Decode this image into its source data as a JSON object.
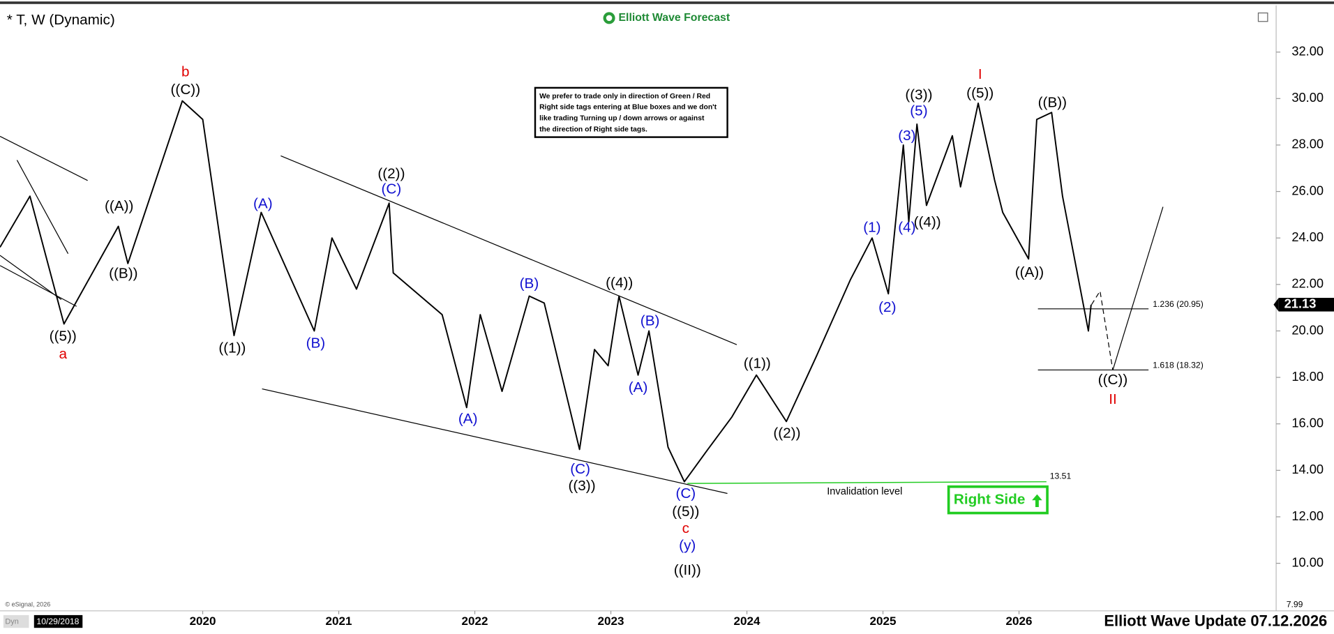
{
  "chart_data": {
    "type": "line",
    "title": "* T, W (Dynamic)",
    "brand": "Elliott Wave Forecast",
    "footer": "Elliott Wave Update 07.12.2026",
    "start_date": "10/29/2018",
    "mode_label": "Dyn",
    "source": "© eSignal, 2026",
    "right_side_tag": "Right Side",
    "disclaimer": [
      "We prefer to trade only in direction of Green / Red",
      "Right side tags entering at Blue boxes and we don't",
      "like trading Turning up / down arrows or against",
      "the direction of Right side tags."
    ],
    "x": [
      2018.51,
      2018.73,
      2018.98,
      2019.38,
      2019.45,
      2019.85,
      2020.0,
      2020.23,
      2020.43,
      2020.82,
      2020.95,
      2021.13,
      2021.37,
      2021.4,
      2021.76,
      2021.94,
      2022.04,
      2022.2,
      2022.4,
      2022.51,
      2022.77,
      2022.88,
      2022.98,
      2023.06,
      2023.2,
      2023.28,
      2023.42,
      2023.54,
      2023.7,
      2023.89,
      2024.07,
      2024.29,
      2024.51,
      2024.76,
      2024.92,
      2025.04,
      2025.15,
      2025.19,
      2025.25,
      2025.32,
      2025.51,
      2025.57,
      2025.7,
      2025.82,
      2025.88,
      2026.07,
      2026.13,
      2026.24,
      2026.32,
      2026.51,
      2026.53
    ],
    "values": [
      23.6,
      25.8,
      20.3,
      24.5,
      22.9,
      29.9,
      29.1,
      19.8,
      25.1,
      20.0,
      24.0,
      21.8,
      25.5,
      22.5,
      20.7,
      16.7,
      20.7,
      17.4,
      21.5,
      21.2,
      14.9,
      19.2,
      18.5,
      21.5,
      18.1,
      20.0,
      15.0,
      13.51,
      14.8,
      16.3,
      18.1,
      16.1,
      18.9,
      22.2,
      24.0,
      21.6,
      28.0,
      24.7,
      28.9,
      25.4,
      28.4,
      26.2,
      29.8,
      26.5,
      25.1,
      23.1,
      29.1,
      29.4,
      25.8,
      20.0,
      21.13
    ],
    "color": "#000000",
    "last_price": 21.13,
    "xlim": [
      2018.51,
      2027.89
    ],
    "xticks": [
      2020,
      2021,
      2022,
      2023,
      2024,
      2025,
      2026
    ],
    "ylim": [
      7.99,
      33.94
    ],
    "yticks": [
      {
        "value": 10,
        "label": "10.00"
      },
      {
        "value": 12,
        "label": "12.00"
      },
      {
        "value": 14,
        "label": "14.00"
      },
      {
        "value": 16,
        "label": "16.00"
      },
      {
        "value": 18,
        "label": "18.00"
      },
      {
        "value": 20,
        "label": "20.00"
      },
      {
        "value": 22,
        "label": "22.00"
      },
      {
        "value": 24,
        "label": "24.00"
      },
      {
        "value": 26,
        "label": "26.00"
      },
      {
        "value": 28,
        "label": "28.00"
      },
      {
        "value": 30,
        "label": "30.00"
      },
      {
        "value": 32,
        "label": "32.00"
      }
    ],
    "grid": false,
    "fib_levels": [
      {
        "label": "1.236 (20.95)",
        "value": 20.95
      },
      {
        "label": "1.618 (18.32)",
        "value": 18.32
      }
    ],
    "invalidation": {
      "label": "Invalidation level",
      "value": 13.51
    },
    "wave_labels": [
      {
        "text": "b",
        "color": "#e00000"
      },
      {
        "text": "((C))",
        "color": "#000000"
      },
      {
        "text": "((A))",
        "color": "#000000"
      },
      {
        "text": "((B))",
        "color": "#000000"
      },
      {
        "text": "((5))",
        "color": "#000000"
      },
      {
        "text": "a",
        "color": "#e00000"
      },
      {
        "text": "((1))",
        "color": "#000000"
      },
      {
        "text": "(A)",
        "color": "#1010d0"
      },
      {
        "text": "(B)",
        "color": "#1010d0"
      },
      {
        "text": "((2))",
        "color": "#000000"
      },
      {
        "text": "(C)",
        "color": "#1010d0"
      },
      {
        "text": "(A)",
        "color": "#1010d0"
      },
      {
        "text": "(B)",
        "color": "#1010d0"
      },
      {
        "text": "(C)",
        "color": "#1010d0"
      },
      {
        "text": "((3))",
        "color": "#000000"
      },
      {
        "text": "((4))",
        "color": "#000000"
      },
      {
        "text": "(B)",
        "color": "#1010d0"
      },
      {
        "text": "(A)",
        "color": "#1010d0"
      },
      {
        "text": "(C)",
        "color": "#1010d0"
      },
      {
        "text": "((5))",
        "color": "#000000"
      },
      {
        "text": "c",
        "color": "#e00000"
      },
      {
        "text": "(y)",
        "color": "#1010d0"
      },
      {
        "text": "((II))",
        "color": "#000000"
      },
      {
        "text": "((1))",
        "color": "#000000"
      },
      {
        "text": "((2))",
        "color": "#000000"
      },
      {
        "text": "(1)",
        "color": "#1010d0"
      },
      {
        "text": "(2)",
        "color": "#1010d0"
      },
      {
        "text": "(3)",
        "color": "#1010d0"
      },
      {
        "text": "(5)",
        "color": "#1010d0"
      },
      {
        "text": "((3))",
        "color": "#000000"
      },
      {
        "text": "(4)",
        "color": "#1010d0"
      },
      {
        "text": "((4))",
        "color": "#000000"
      },
      {
        "text": "I",
        "color": "#e00000"
      },
      {
        "text": "((5))",
        "color": "#000000"
      },
      {
        "text": "((B))",
        "color": "#000000"
      },
      {
        "text": "((A))",
        "color": "#000000"
      },
      {
        "text": "((C))",
        "color": "#000000"
      },
      {
        "text": "II",
        "color": "#e00000"
      }
    ]
  }
}
